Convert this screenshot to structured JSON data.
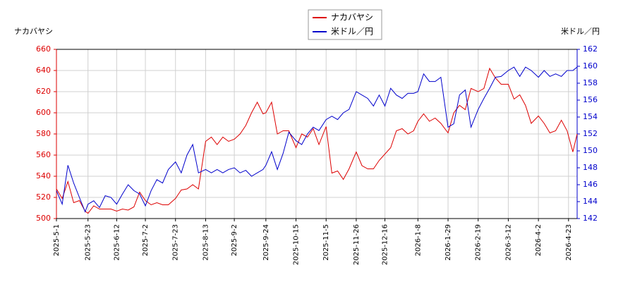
{
  "chart_data": {
    "type": "line",
    "ylabel": "ナカバヤシ",
    "y2label": "米ドル／円",
    "x": [
      "2025-5-1",
      "2025-5-5",
      "2025-5-9",
      "2025-5-13",
      "2025-5-17",
      "2025-5-21",
      "2025-5-23",
      "2025-5-27",
      "2025-5-31",
      "2025-6-4",
      "2025-6-8",
      "2025-6-12",
      "2025-6-16",
      "2025-6-20",
      "2025-6-24",
      "2025-6-28",
      "2025-7-2",
      "2025-7-6",
      "2025-7-10",
      "2025-7-14",
      "2025-7-18",
      "2025-7-23",
      "2025-7-27",
      "2025-7-31",
      "2025-8-4",
      "2025-8-8",
      "2025-8-13",
      "2025-8-17",
      "2025-8-21",
      "2025-8-25",
      "2025-8-29",
      "2025-9-2",
      "2025-9-6",
      "2025-9-10",
      "2025-9-14",
      "2025-9-18",
      "2025-9-22",
      "2025-9-24",
      "2025-9-28",
      "2025-10-2",
      "2025-10-6",
      "2025-10-10",
      "2025-10-15",
      "2025-10-19",
      "2025-10-23",
      "2025-10-27",
      "2025-10-31",
      "2025-11-5",
      "2025-11-9",
      "2025-11-13",
      "2025-11-17",
      "2025-11-21",
      "2025-11-26",
      "2025-11-30",
      "2025-12-4",
      "2025-12-8",
      "2025-12-12",
      "2025-12-16",
      "2025-12-20",
      "2025-12-24",
      "2025-12-28",
      "2026-1-1",
      "2026-1-5",
      "2026-1-8",
      "2026-1-12",
      "2026-1-16",
      "2026-1-20",
      "2026-1-24",
      "2026-1-29",
      "2026-2-2",
      "2026-2-6",
      "2026-2-10",
      "2026-2-14",
      "2026-2-19",
      "2026-2-23",
      "2026-2-27",
      "2026-3-3",
      "2026-3-7",
      "2026-3-12",
      "2026-3-16",
      "2026-3-20",
      "2026-3-24",
      "2026-3-28",
      "2026-4-2",
      "2026-4-6",
      "2026-4-10",
      "2026-4-14",
      "2026-4-18",
      "2026-4-22",
      "2026-4-26",
      "2026-4-29"
    ],
    "series": [
      {
        "name": "ナカバヤシ",
        "color": "#dd0000",
        "values": [
          528,
          519,
          535,
          515,
          517,
          507,
          505,
          512,
          509,
          509,
          509,
          507,
          509,
          508,
          511,
          525,
          517,
          513,
          515,
          513,
          513,
          519,
          527,
          528,
          532,
          528,
          573,
          577,
          570,
          577,
          573,
          575,
          580,
          588,
          600,
          610,
          599,
          600,
          610,
          580,
          583,
          583,
          567,
          580,
          577,
          585,
          570,
          587,
          543,
          545,
          537,
          547,
          563,
          550,
          547,
          547,
          555,
          561,
          567,
          583,
          585,
          580,
          583,
          592,
          599,
          592,
          595,
          590,
          581,
          600,
          607,
          603,
          623,
          620,
          623,
          642,
          633,
          627,
          627,
          613,
          617,
          607,
          590,
          597,
          590,
          581,
          583,
          593,
          583,
          563,
          580
        ]
      },
      {
        "name": "米ドル／円",
        "color": "#0000cc",
        "axis": "y2",
        "values": [
          145.3,
          143.7,
          148.3,
          146.2,
          144.5,
          142.8,
          143.7,
          144.1,
          143.3,
          144.7,
          144.5,
          143.7,
          144.9,
          146.0,
          145.3,
          144.9,
          143.5,
          145.3,
          146.6,
          146.2,
          147.8,
          148.7,
          147.4,
          149.5,
          150.75,
          147.4,
          147.8,
          147.4,
          147.8,
          147.4,
          147.8,
          148.0,
          147.4,
          147.7,
          147.0,
          147.4,
          147.8,
          148.3,
          149.9,
          147.8,
          149.7,
          152.2,
          151.2,
          150.75,
          152.0,
          152.8,
          152.4,
          153.7,
          154.1,
          153.7,
          154.5,
          154.9,
          157.0,
          156.6,
          156.2,
          155.3,
          156.6,
          155.3,
          157.4,
          156.6,
          156.2,
          156.8,
          156.8,
          157.0,
          159.1,
          158.2,
          158.2,
          158.7,
          152.8,
          153.2,
          156.6,
          157.2,
          152.8,
          154.9,
          156.2,
          157.4,
          158.7,
          158.8,
          159.5,
          159.9,
          158.8,
          159.9,
          159.5,
          158.7,
          159.5,
          158.8,
          159.1,
          158.8,
          159.5,
          159.5,
          159.9
        ]
      }
    ],
    "xlim": [
      "2025-5-1",
      "2026-4-29"
    ],
    "xticks": [
      "2025-5-1",
      "2025-5-23",
      "2025-6-12",
      "2025-7-2",
      "2025-7-23",
      "2025-8-13",
      "2025-9-2",
      "2025-9-24",
      "2025-10-15",
      "2025-11-5",
      "2025-11-26",
      "2025-12-16",
      "2026-1-8",
      "2026-1-29",
      "2026-2-19",
      "2026-3-12",
      "2026-4-2",
      "2026-4-23"
    ],
    "ylim": [
      500,
      660
    ],
    "yticks": [
      500,
      520,
      540,
      560,
      580,
      600,
      620,
      640,
      660
    ],
    "y2lim": [
      142,
      162
    ],
    "y2ticks": [
      142,
      144,
      146,
      148,
      150,
      152,
      154,
      156,
      158,
      160,
      162
    ],
    "grid": true,
    "legend": "top"
  }
}
